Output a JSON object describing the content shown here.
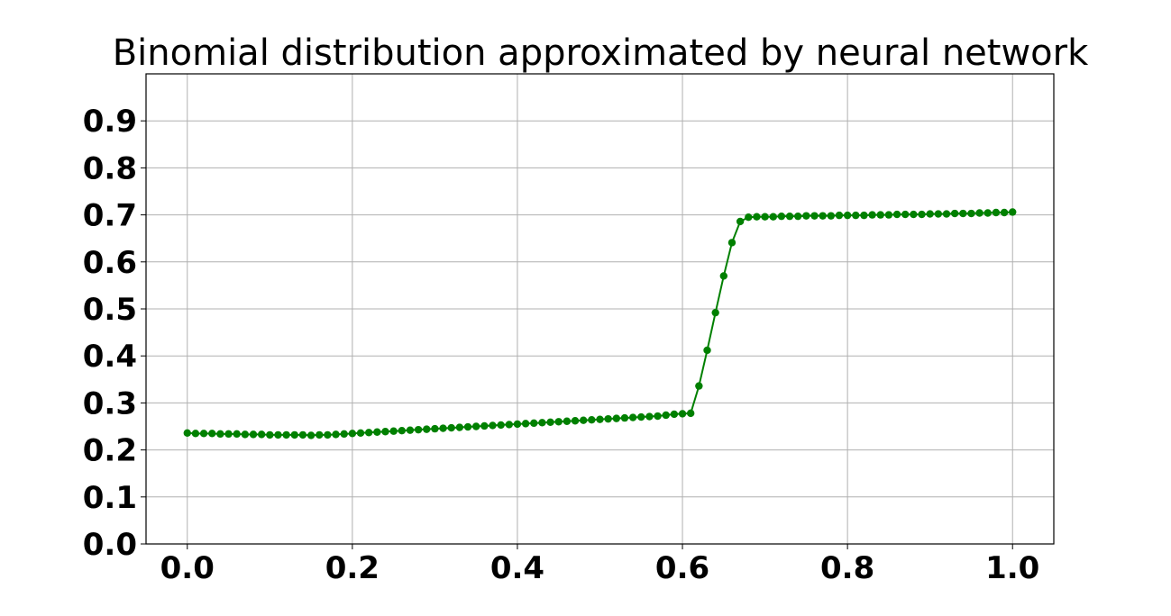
{
  "chart_data": {
    "type": "line",
    "title": "Binomial distribution approximated by neural network",
    "xlabel": "",
    "ylabel": "",
    "xlim": [
      -0.05,
      1.05
    ],
    "ylim": [
      0.0,
      1.0
    ],
    "x_ticks": [
      0.0,
      0.2,
      0.4,
      0.6,
      0.8,
      1.0
    ],
    "x_tick_labels": [
      "0.0",
      "0.2",
      "0.4",
      "0.6",
      "0.8",
      "1.0"
    ],
    "y_ticks": [
      0.0,
      0.1,
      0.2,
      0.3,
      0.4,
      0.5,
      0.6,
      0.7,
      0.8,
      0.9
    ],
    "y_tick_labels": [
      "0.0",
      "0.1",
      "0.2",
      "0.3",
      "0.4",
      "0.5",
      "0.6",
      "0.7",
      "0.8",
      "0.9"
    ],
    "grid": true,
    "series": [
      {
        "color": "#008000",
        "marker": "circle",
        "x": [
          0.0,
          0.01,
          0.02,
          0.03,
          0.04,
          0.05,
          0.06,
          0.07,
          0.08,
          0.09,
          0.1,
          0.11,
          0.12,
          0.13,
          0.14,
          0.15,
          0.16,
          0.17,
          0.18,
          0.19,
          0.2,
          0.21,
          0.22,
          0.23,
          0.24,
          0.25,
          0.26,
          0.27,
          0.28,
          0.29,
          0.3,
          0.31,
          0.32,
          0.33,
          0.34,
          0.35,
          0.36,
          0.37,
          0.38,
          0.39,
          0.4,
          0.41,
          0.42,
          0.43,
          0.44,
          0.45,
          0.46,
          0.47,
          0.48,
          0.49,
          0.5,
          0.51,
          0.52,
          0.53,
          0.54,
          0.55,
          0.56,
          0.57,
          0.58,
          0.59,
          0.6,
          0.61,
          0.62,
          0.63,
          0.64,
          0.65,
          0.66,
          0.67,
          0.68,
          0.69,
          0.7,
          0.71,
          0.72,
          0.73,
          0.74,
          0.75,
          0.76,
          0.77,
          0.78,
          0.79,
          0.8,
          0.81,
          0.82,
          0.83,
          0.84,
          0.85,
          0.86,
          0.87,
          0.88,
          0.89,
          0.9,
          0.91,
          0.92,
          0.93,
          0.94,
          0.95,
          0.96,
          0.97,
          0.98,
          0.99,
          1.0
        ],
        "y": [
          0.236,
          0.235,
          0.235,
          0.235,
          0.234,
          0.234,
          0.234,
          0.233,
          0.233,
          0.233,
          0.232,
          0.232,
          0.232,
          0.232,
          0.232,
          0.231,
          0.232,
          0.232,
          0.233,
          0.234,
          0.235,
          0.236,
          0.237,
          0.238,
          0.239,
          0.24,
          0.241,
          0.242,
          0.243,
          0.244,
          0.245,
          0.246,
          0.247,
          0.248,
          0.249,
          0.25,
          0.251,
          0.252,
          0.253,
          0.254,
          0.255,
          0.256,
          0.257,
          0.258,
          0.259,
          0.26,
          0.261,
          0.262,
          0.263,
          0.264,
          0.265,
          0.266,
          0.267,
          0.268,
          0.269,
          0.27,
          0.271,
          0.272,
          0.274,
          0.276,
          0.277,
          0.278,
          0.336,
          0.412,
          0.492,
          0.57,
          0.641,
          0.686,
          0.695,
          0.696,
          0.696,
          0.696,
          0.697,
          0.697,
          0.697,
          0.698,
          0.698,
          0.698,
          0.698,
          0.699,
          0.699,
          0.699,
          0.699,
          0.7,
          0.7,
          0.7,
          0.701,
          0.701,
          0.701,
          0.701,
          0.702,
          0.702,
          0.702,
          0.703,
          0.703,
          0.703,
          0.704,
          0.704,
          0.705,
          0.705,
          0.706
        ]
      }
    ]
  }
}
